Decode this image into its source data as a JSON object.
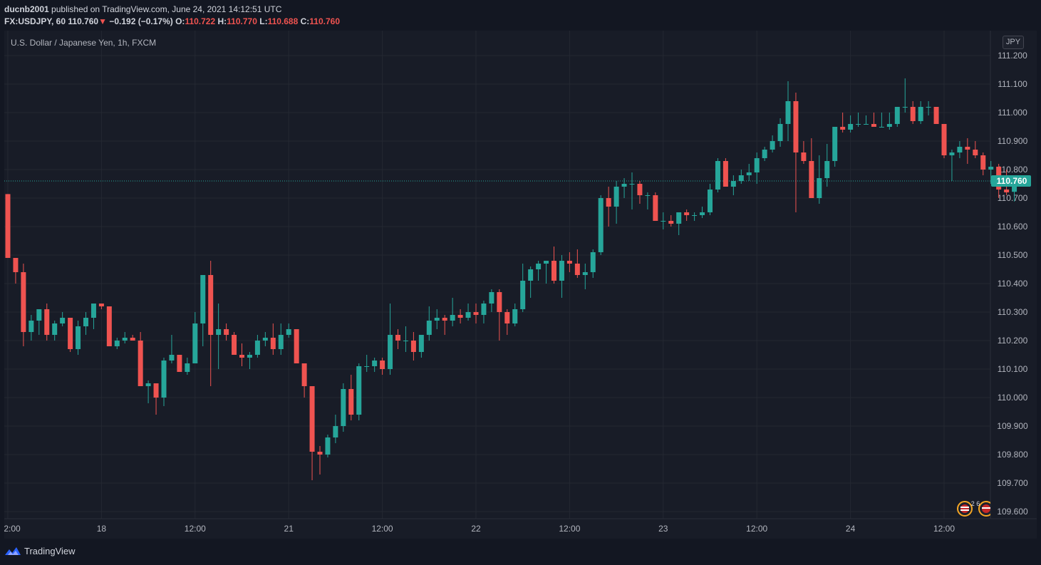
{
  "header": {
    "author": "ducnb2001",
    "published_text": "published on TradingView.com, June 24, 2021 14:12:51 UTC",
    "symbol_interval": "FX:USDJPY, 60",
    "last": "110.760",
    "change_arrow": "▼",
    "change": "−0.192 (−0.17%)",
    "o_label": "O:",
    "o_value": "110.722",
    "h_label": "H:",
    "h_value": "110.770",
    "l_label": "L:",
    "l_value": "110.688",
    "c_label": "C:",
    "c_value": "110.760"
  },
  "symbol_title": "U.S. Dollar / Japanese Yen, 1h, FXCM",
  "currency": "JPY",
  "footer": {
    "brand": "TradingView"
  },
  "events_label": "2 6",
  "colors": {
    "up": "#26a69a",
    "down": "#ef5350",
    "bg": "#181c27",
    "grid": "#242832",
    "axis_text": "#b2b5be"
  },
  "chart_data": {
    "type": "candlestick",
    "title": "U.S. Dollar / Japanese Yen, 1h, FXCM",
    "ylim": [
      109.57,
      111.27
    ],
    "y_ticks": [
      "111.200",
      "111.100",
      "111.000",
      "110.900",
      "110.800",
      "110.700",
      "110.600",
      "110.500",
      "110.400",
      "110.300",
      "110.200",
      "110.100",
      "110.000",
      "109.900",
      "109.800",
      "109.700",
      "109.600"
    ],
    "x_ticks": [
      {
        "label": "2:00",
        "candle": 0
      },
      {
        "label": "18",
        "candle": 12
      },
      {
        "label": "12:00",
        "candle": 24
      },
      {
        "label": "21",
        "candle": 36
      },
      {
        "label": "12:00",
        "candle": 48
      },
      {
        "label": "22",
        "candle": 60
      },
      {
        "label": "12:00",
        "candle": 72
      },
      {
        "label": "23",
        "candle": 84
      },
      {
        "label": "12:00",
        "candle": 96
      },
      {
        "label": "24",
        "candle": 108
      },
      {
        "label": "12:00",
        "candle": 120
      }
    ],
    "current_price": "110.760",
    "candles": [
      [
        110.714,
        110.714,
        110.49,
        110.49
      ],
      [
        110.49,
        110.49,
        110.4,
        110.44
      ],
      [
        110.44,
        110.47,
        110.18,
        110.23
      ],
      [
        110.23,
        110.29,
        110.2,
        110.27
      ],
      [
        110.27,
        110.31,
        110.22,
        110.31
      ],
      [
        110.31,
        110.33,
        110.2,
        110.22
      ],
      [
        110.22,
        110.27,
        110.2,
        110.26
      ],
      [
        110.26,
        110.3,
        110.25,
        110.28
      ],
      [
        110.28,
        110.28,
        110.16,
        110.17
      ],
      [
        110.17,
        110.27,
        110.15,
        110.25
      ],
      [
        110.25,
        110.3,
        110.22,
        110.28
      ],
      [
        110.28,
        110.33,
        110.24,
        110.33
      ],
      [
        110.33,
        110.33,
        110.31,
        110.32
      ],
      [
        110.32,
        110.32,
        110.18,
        110.18
      ],
      [
        110.18,
        110.21,
        110.17,
        110.2
      ],
      [
        110.2,
        110.23,
        110.19,
        110.21
      ],
      [
        110.21,
        110.22,
        110.2,
        110.2
      ],
      [
        110.2,
        110.23,
        110.04,
        110.04
      ],
      [
        110.04,
        110.06,
        109.98,
        110.05
      ],
      [
        110.05,
        110.05,
        109.94,
        110.0
      ],
      [
        110.0,
        110.14,
        109.97,
        110.13
      ],
      [
        110.13,
        110.22,
        110.12,
        110.15
      ],
      [
        110.15,
        110.15,
        110.09,
        110.09
      ],
      [
        110.09,
        110.14,
        110.08,
        110.12
      ],
      [
        110.12,
        110.3,
        110.12,
        110.26
      ],
      [
        110.26,
        110.43,
        110.18,
        110.43
      ],
      [
        110.43,
        110.48,
        110.04,
        110.22
      ],
      [
        110.22,
        110.33,
        110.1,
        110.24
      ],
      [
        110.24,
        110.26,
        110.2,
        110.22
      ],
      [
        110.22,
        110.23,
        110.15,
        110.15
      ],
      [
        110.15,
        110.19,
        110.11,
        110.14
      ],
      [
        110.14,
        110.16,
        110.1,
        110.15
      ],
      [
        110.15,
        110.22,
        110.14,
        110.2
      ],
      [
        110.2,
        110.23,
        110.18,
        110.21
      ],
      [
        110.21,
        110.26,
        110.15,
        110.17
      ],
      [
        110.17,
        110.26,
        110.15,
        110.22
      ],
      [
        110.22,
        110.26,
        110.21,
        110.24
      ],
      [
        110.24,
        110.24,
        110.12,
        110.12
      ],
      [
        110.12,
        110.12,
        110.0,
        110.04
      ],
      [
        110.04,
        110.04,
        109.71,
        109.81
      ],
      [
        109.81,
        109.83,
        109.73,
        109.8
      ],
      [
        109.8,
        109.87,
        109.79,
        109.86
      ],
      [
        109.86,
        109.94,
        109.84,
        109.9
      ],
      [
        109.9,
        110.05,
        109.88,
        110.03
      ],
      [
        110.03,
        110.08,
        109.92,
        109.94
      ],
      [
        109.94,
        110.12,
        109.92,
        110.11
      ],
      [
        110.11,
        110.15,
        110.09,
        110.11
      ],
      [
        110.11,
        110.14,
        110.09,
        110.13
      ],
      [
        110.13,
        110.14,
        110.08,
        110.1
      ],
      [
        110.1,
        110.33,
        110.08,
        110.22
      ],
      [
        110.22,
        110.24,
        110.17,
        110.2
      ],
      [
        110.2,
        110.25,
        110.16,
        110.2
      ],
      [
        110.2,
        110.23,
        110.13,
        110.16
      ],
      [
        110.16,
        110.22,
        110.14,
        110.22
      ],
      [
        110.22,
        110.32,
        110.2,
        110.27
      ],
      [
        110.27,
        110.31,
        110.24,
        110.28
      ],
      [
        110.28,
        110.29,
        110.22,
        110.27
      ],
      [
        110.27,
        110.35,
        110.25,
        110.29
      ],
      [
        110.29,
        110.31,
        110.26,
        110.28
      ],
      [
        110.28,
        110.33,
        110.27,
        110.3
      ],
      [
        110.3,
        110.33,
        110.26,
        110.29
      ],
      [
        110.29,
        110.34,
        110.26,
        110.33
      ],
      [
        110.33,
        110.38,
        110.3,
        110.37
      ],
      [
        110.37,
        110.38,
        110.2,
        110.3
      ],
      [
        110.3,
        110.31,
        110.22,
        110.26
      ],
      [
        110.26,
        110.33,
        110.25,
        110.31
      ],
      [
        110.31,
        110.47,
        110.3,
        110.41
      ],
      [
        110.41,
        110.46,
        110.35,
        110.45
      ],
      [
        110.45,
        110.48,
        110.41,
        110.47
      ],
      [
        110.47,
        110.48,
        110.4,
        110.48
      ],
      [
        110.48,
        110.53,
        110.4,
        110.41
      ],
      [
        110.41,
        110.5,
        110.35,
        110.48
      ],
      [
        110.48,
        110.51,
        110.44,
        110.47
      ],
      [
        110.47,
        110.52,
        110.42,
        110.43
      ],
      [
        110.43,
        110.47,
        110.38,
        110.44
      ],
      [
        110.44,
        110.52,
        110.42,
        110.51
      ],
      [
        110.51,
        110.71,
        110.5,
        110.7
      ],
      [
        110.7,
        110.74,
        110.6,
        110.67
      ],
      [
        110.67,
        110.76,
        110.61,
        110.74
      ],
      [
        110.74,
        110.77,
        110.7,
        110.75
      ],
      [
        110.75,
        110.79,
        110.66,
        110.75
      ],
      [
        110.75,
        110.76,
        110.68,
        110.71
      ],
      [
        110.71,
        110.72,
        110.66,
        110.71
      ],
      [
        110.71,
        110.72,
        110.62,
        110.62
      ],
      [
        110.62,
        110.65,
        110.59,
        110.62
      ],
      [
        110.62,
        110.64,
        110.6,
        110.61
      ],
      [
        110.61,
        110.65,
        110.57,
        110.65
      ],
      [
        110.65,
        110.66,
        110.62,
        110.64
      ],
      [
        110.64,
        110.65,
        110.62,
        110.64
      ],
      [
        110.64,
        110.67,
        110.63,
        110.65
      ],
      [
        110.65,
        110.75,
        110.64,
        110.73
      ],
      [
        110.73,
        110.84,
        110.72,
        110.83
      ],
      [
        110.83,
        110.84,
        110.74,
        110.74
      ],
      [
        110.74,
        110.78,
        110.71,
        110.76
      ],
      [
        110.76,
        110.8,
        110.75,
        110.78
      ],
      [
        110.78,
        110.82,
        110.76,
        110.79
      ],
      [
        110.79,
        110.86,
        110.75,
        110.84
      ],
      [
        110.84,
        110.88,
        110.83,
        110.87
      ],
      [
        110.87,
        110.92,
        110.86,
        110.9
      ],
      [
        110.9,
        110.98,
        110.88,
        110.96
      ],
      [
        110.96,
        111.11,
        110.9,
        111.04
      ],
      [
        111.04,
        111.07,
        110.65,
        110.86
      ],
      [
        110.86,
        110.9,
        110.82,
        110.83
      ],
      [
        110.83,
        110.91,
        110.7,
        110.7
      ],
      [
        110.7,
        110.85,
        110.68,
        110.77
      ],
      [
        110.77,
        110.89,
        110.74,
        110.83
      ],
      [
        110.83,
        110.95,
        110.81,
        110.95
      ],
      [
        110.95,
        111.0,
        110.93,
        110.94
      ],
      [
        110.94,
        110.99,
        110.93,
        110.96
      ],
      [
        110.96,
        111.0,
        110.95,
        110.96
      ],
      [
        110.96,
        110.99,
        110.96,
        110.96
      ],
      [
        110.96,
        111.0,
        110.95,
        110.95
      ],
      [
        110.95,
        111.0,
        110.95,
        110.95
      ],
      [
        110.95,
        111.0,
        110.94,
        110.96
      ],
      [
        110.96,
        111.02,
        110.95,
        111.02
      ],
      [
        111.02,
        111.12,
        111.0,
        111.02
      ],
      [
        111.02,
        111.04,
        110.96,
        110.97
      ],
      [
        110.97,
        111.04,
        110.96,
        111.02
      ],
      [
        111.02,
        111.04,
        110.99,
        111.02
      ],
      [
        111.02,
        111.02,
        110.96,
        110.96
      ],
      [
        110.96,
        110.96,
        110.84,
        110.85
      ],
      [
        110.85,
        110.87,
        110.76,
        110.86
      ],
      [
        110.86,
        110.9,
        110.84,
        110.88
      ],
      [
        110.88,
        110.91,
        110.82,
        110.87
      ],
      [
        110.87,
        110.9,
        110.84,
        110.85
      ],
      [
        110.85,
        110.86,
        110.78,
        110.8
      ],
      [
        110.8,
        110.83,
        110.75,
        110.81
      ],
      [
        110.81,
        110.82,
        110.7,
        110.73
      ],
      [
        110.73,
        110.8,
        110.71,
        110.72
      ],
      [
        110.722,
        110.77,
        110.688,
        110.76
      ]
    ]
  }
}
